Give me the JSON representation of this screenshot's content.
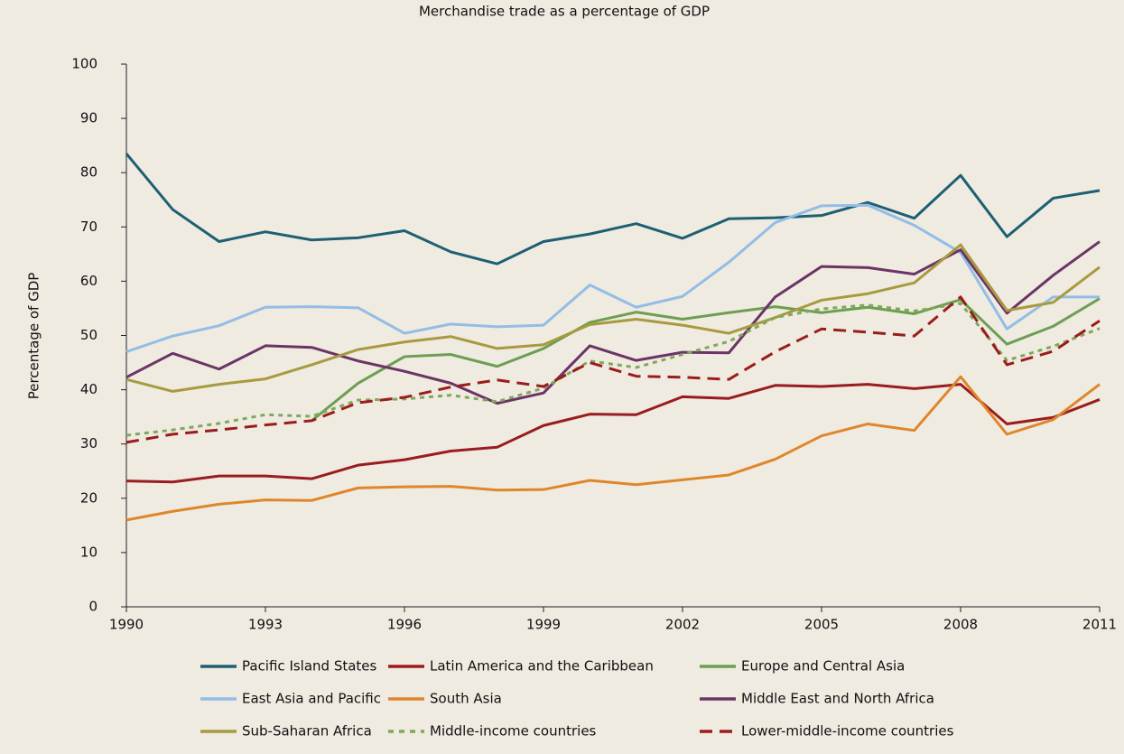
{
  "chart_data": {
    "type": "line",
    "title": "Merchandise trade as a percentage of GDP",
    "y_label": "Percentage of GDP",
    "x": [
      1990,
      1991,
      1992,
      1993,
      1994,
      1995,
      1996,
      1997,
      1998,
      1999,
      2000,
      2001,
      2002,
      2003,
      2004,
      2005,
      2006,
      2007,
      2008,
      2009,
      2010,
      2011
    ],
    "xlim": [
      1990,
      2011
    ],
    "xticks": [
      1990,
      1993,
      1996,
      1999,
      2002,
      2005,
      2008,
      2011
    ],
    "ylim": [
      0,
      100
    ],
    "yticks": [
      0,
      10,
      20,
      30,
      40,
      50,
      60,
      70,
      80,
      90,
      100
    ],
    "grid": false,
    "legend": "bottom",
    "series": [
      {
        "name": "Pacific Island States",
        "color": "#1d5f73",
        "style": "solid",
        "values": [
          83.5,
          73.2,
          67.3,
          69.1,
          67.6,
          68,
          69.3,
          65.4,
          63.2,
          67.3,
          68.7,
          70.6,
          67.9,
          71.5,
          71.7,
          72.1,
          74.5,
          71.6,
          79.5,
          68.2,
          75.3,
          76.7
        ]
      },
      {
        "name": "Latin America and the Caribbean",
        "color": "#9b1c1c",
        "style": "solid",
        "values": [
          23.2,
          23,
          24.1,
          24.1,
          23.6,
          26.1,
          27.1,
          28.7,
          29.4,
          33.4,
          35.5,
          35.4,
          38.7,
          38.4,
          40.8,
          40.6,
          41,
          40.2,
          41,
          33.7,
          34.9,
          38.2
        ]
      },
      {
        "name": "Europe and Central Asia",
        "color": "#6d9e52",
        "style": "solid",
        "values": [
          null,
          null,
          null,
          null,
          34.3,
          41.2,
          46.1,
          46.5,
          44.3,
          47.6,
          52.4,
          54.3,
          53,
          54.2,
          55.3,
          54.2,
          55.2,
          54,
          56.6,
          48.4,
          51.7,
          56.8
        ]
      },
      {
        "name": "East Asia and Pacific",
        "color": "#93bde6",
        "style": "solid",
        "values": [
          47,
          49.9,
          51.8,
          55.2,
          55.3,
          55.1,
          50.4,
          52.1,
          51.6,
          51.9,
          59.3,
          55.2,
          57.2,
          63.5,
          70.8,
          73.9,
          74,
          70.3,
          65.3,
          51.2,
          57.1,
          57.1
        ]
      },
      {
        "name": "South Asia",
        "color": "#e0862a",
        "style": "solid",
        "values": [
          16,
          17.6,
          18.9,
          19.7,
          19.6,
          21.9,
          22.1,
          22.2,
          21.5,
          21.6,
          23.3,
          22.5,
          23.4,
          24.3,
          27.2,
          31.5,
          33.7,
          32.5,
          42.4,
          31.8,
          34.5,
          41
        ]
      },
      {
        "name": "Middle East and North Africa",
        "color": "#6b3466",
        "style": "solid",
        "values": [
          42.3,
          46.7,
          43.8,
          48.1,
          47.8,
          45.3,
          43.4,
          41.2,
          37.5,
          39.4,
          48.1,
          45.4,
          46.9,
          46.8,
          57.1,
          62.7,
          62.5,
          61.3,
          65.8,
          54.1,
          61.1,
          67.3
        ]
      },
      {
        "name": "Sub-Saharan Africa",
        "color": "#a79a3f",
        "style": "solid",
        "values": [
          41.9,
          39.7,
          41,
          42,
          44.6,
          47.4,
          48.8,
          49.8,
          47.6,
          48.3,
          52,
          53,
          51.9,
          50.4,
          53.3,
          56.5,
          57.7,
          59.7,
          66.7,
          54.6,
          56.1,
          62.6
        ]
      },
      {
        "name": "Middle-income countries",
        "color": "#7fa85a",
        "style": "dotted",
        "values": [
          31.6,
          32.6,
          33.8,
          35.4,
          35.1,
          38.1,
          38.3,
          39,
          37.8,
          40.3,
          45.3,
          44.1,
          46.5,
          48.9,
          53.3,
          54.9,
          55.6,
          54.5,
          55.9,
          45.4,
          48,
          51.3
        ]
      },
      {
        "name": "Lower-middle-income countries",
        "color": "#9b1c1c",
        "style": "dashed",
        "values": [
          30.3,
          31.8,
          32.6,
          33.5,
          34.3,
          37.6,
          38.6,
          40.5,
          41.8,
          40.6,
          45,
          42.5,
          42.3,
          41.9,
          47,
          51.2,
          50.6,
          49.9,
          57.1,
          44.6,
          47.1,
          52.7
        ]
      }
    ]
  }
}
